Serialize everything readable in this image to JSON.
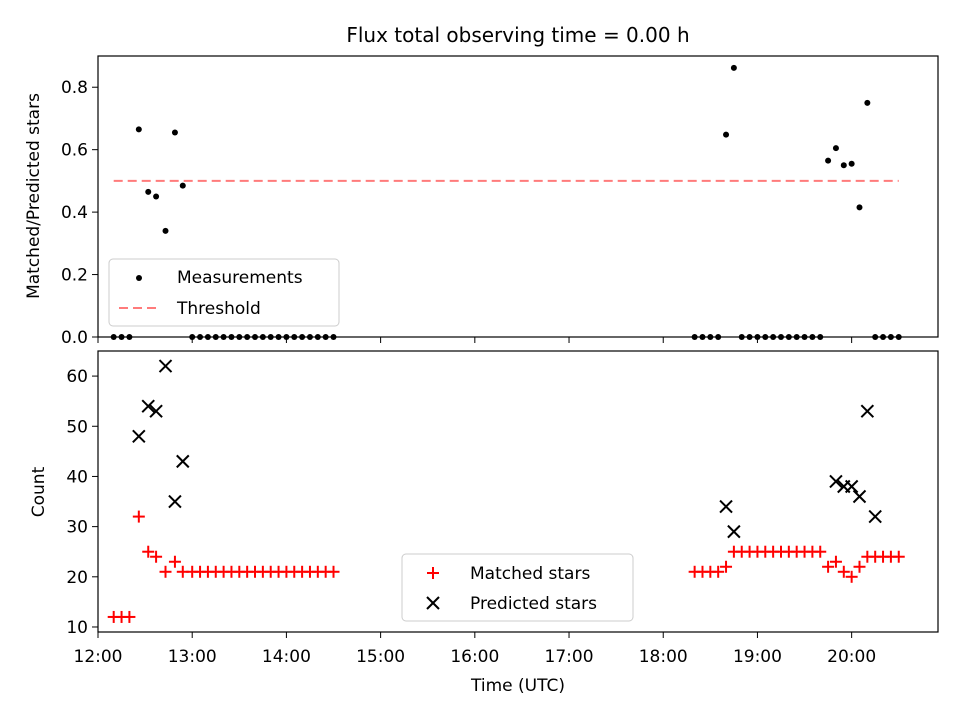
{
  "chart_data": [
    {
      "type": "scatter",
      "title": "Flux total observing time = 0.00 h",
      "xlabel": "",
      "ylabel": "Matched/Predicted stars",
      "xlim": [
        "12:00",
        "20:55"
      ],
      "ylim": [
        0,
        0.9
      ],
      "yticks": [
        "0.0",
        "0.2",
        "0.4",
        "0.6",
        "0.8"
      ],
      "legend": {
        "position": "lower-left",
        "entries": [
          "Measurements",
          "Threshold"
        ]
      },
      "colors": {
        "points": "#000000",
        "threshold": "#ff7b7b"
      },
      "threshold": {
        "value": 0.5,
        "x_start": "12:10",
        "x_end": "20:30"
      },
      "series": [
        {
          "name": "Measurements",
          "x": [
            "12:10",
            "12:15",
            "12:20",
            "12:26",
            "12:32",
            "12:37",
            "12:43",
            "12:49",
            "12:54",
            "13:00",
            "13:05",
            "13:10",
            "13:15",
            "13:20",
            "13:25",
            "13:30",
            "13:35",
            "13:40",
            "13:45",
            "13:50",
            "13:55",
            "14:00",
            "14:05",
            "14:10",
            "14:15",
            "14:20",
            "14:25",
            "14:30",
            "18:20",
            "18:25",
            "18:30",
            "18:35",
            "18:40",
            "18:45",
            "18:50",
            "18:55",
            "19:00",
            "19:05",
            "19:10",
            "19:15",
            "19:20",
            "19:25",
            "19:30",
            "19:35",
            "19:40",
            "19:45",
            "19:50",
            "19:55",
            "20:00",
            "20:05",
            "20:10",
            "20:15",
            "20:20",
            "20:25",
            "20:30"
          ],
          "y": [
            0,
            0,
            0,
            0.665,
            0.465,
            0.45,
            0.34,
            0.655,
            0.485,
            0,
            0,
            0,
            0,
            0,
            0,
            0,
            0,
            0,
            0,
            0,
            0,
            0,
            0,
            0,
            0,
            0,
            0,
            0,
            0,
            0,
            0,
            0,
            0.648,
            0.862,
            0,
            0,
            0,
            0,
            0,
            0,
            0,
            0,
            0,
            0,
            0,
            0.565,
            0.605,
            0.55,
            0.555,
            0.415,
            0.75,
            0,
            0,
            0,
            0
          ]
        }
      ]
    },
    {
      "type": "scatter",
      "title": "",
      "xlabel": "Time (UTC)",
      "ylabel": "Count",
      "xlim": [
        "12:00",
        "20:55"
      ],
      "ylim": [
        9,
        65
      ],
      "yticks": [
        "10",
        "20",
        "30",
        "40",
        "50",
        "60"
      ],
      "xticks": [
        "12:00",
        "13:00",
        "14:00",
        "15:00",
        "16:00",
        "17:00",
        "18:00",
        "19:00",
        "20:00"
      ],
      "legend": {
        "position": "lower-center",
        "entries": [
          "Matched stars",
          "Predicted stars"
        ]
      },
      "colors": {
        "matched": "#ff0000",
        "predicted": "#000000"
      },
      "series": [
        {
          "name": "Matched stars",
          "marker": "plus",
          "x": [
            "12:10",
            "12:15",
            "12:20",
            "12:26",
            "12:32",
            "12:37",
            "12:43",
            "12:49",
            "12:54",
            "13:00",
            "13:05",
            "13:10",
            "13:15",
            "13:20",
            "13:25",
            "13:30",
            "13:35",
            "13:40",
            "13:45",
            "13:50",
            "13:55",
            "14:00",
            "14:05",
            "14:10",
            "14:15",
            "14:20",
            "14:25",
            "14:30",
            "18:20",
            "18:25",
            "18:30",
            "18:35",
            "18:40",
            "18:45",
            "18:50",
            "18:55",
            "19:00",
            "19:05",
            "19:10",
            "19:15",
            "19:20",
            "19:25",
            "19:30",
            "19:35",
            "19:40",
            "19:45",
            "19:50",
            "19:55",
            "20:00",
            "20:05",
            "20:10",
            "20:15",
            "20:20",
            "20:25",
            "20:30"
          ],
          "y": [
            12,
            12,
            12,
            32,
            25,
            24,
            21,
            23,
            21,
            21,
            21,
            21,
            21,
            21,
            21,
            21,
            21,
            21,
            21,
            21,
            21,
            21,
            21,
            21,
            21,
            21,
            21,
            21,
            21,
            21,
            21,
            21,
            22,
            25,
            25,
            25,
            25,
            25,
            25,
            25,
            25,
            25,
            25,
            25,
            25,
            22,
            23,
            21,
            20,
            22,
            24,
            24,
            24,
            24,
            24
          ]
        },
        {
          "name": "Predicted stars",
          "marker": "x",
          "x": [
            "12:26",
            "12:32",
            "12:37",
            "12:43",
            "12:49",
            "12:54",
            "18:40",
            "18:45",
            "19:50",
            "19:55",
            "20:00",
            "20:05",
            "20:10",
            "20:15"
          ],
          "y": [
            48,
            54,
            53,
            62,
            35,
            43,
            34,
            29,
            39,
            38,
            38,
            36,
            53,
            32
          ]
        }
      ]
    }
  ]
}
